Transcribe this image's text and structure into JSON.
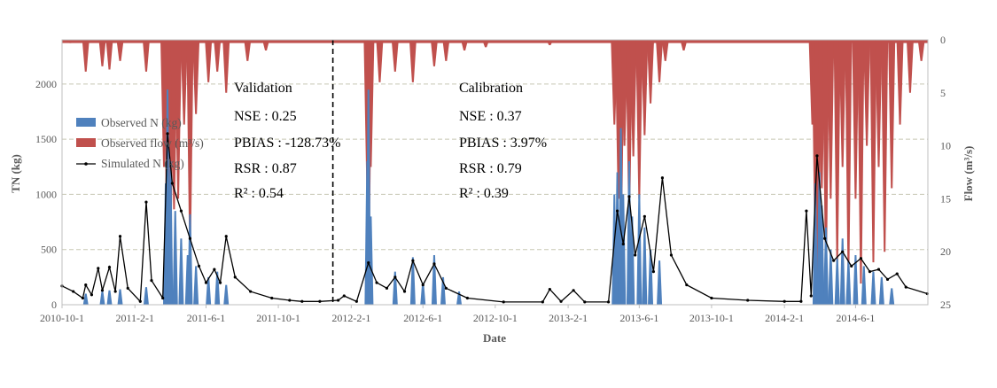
{
  "chart_data": {
    "type": "area",
    "xlabel": "Date",
    "ylabel_left": "TN (kg)",
    "ylabel_right": "Flow (m³/s)",
    "left_ylim": [
      0,
      2400
    ],
    "left_yticks": [
      "0",
      "500",
      "1000",
      "1500",
      "2000"
    ],
    "left_ytick_values": [
      0,
      500,
      1000,
      1500,
      2000
    ],
    "right_ylim": [
      0,
      25
    ],
    "right_inverted": true,
    "right_yticks": [
      "0",
      "5",
      "10",
      "15",
      "20",
      "25"
    ],
    "right_ytick_values": [
      0,
      5,
      10,
      15,
      20,
      25
    ],
    "x_start": "2010-10-01",
    "x_end": "2014-09-30",
    "x_ticks": [
      "2010-10-1",
      "2011-2-1",
      "2011-6-1",
      "2011-10-1",
      "2012-2-1",
      "2012-6-1",
      "2012-10-1",
      "2013-2-1",
      "2013-6-1",
      "2013-10-1",
      "2014-2-1",
      "2014-6-1"
    ],
    "x_tick_dates": [
      "2010-10-01",
      "2011-02-01",
      "2011-06-01",
      "2011-10-01",
      "2012-02-01",
      "2012-06-01",
      "2012-10-01",
      "2013-02-01",
      "2013-06-01",
      "2013-10-01",
      "2014-02-01",
      "2014-06-01"
    ],
    "grid": "horizontal dashed",
    "divider_date": "2012-01-01",
    "legend": {
      "placement": "middle-left",
      "entries": [
        "Observed N (kg)",
        "Observed flow (m³/s)",
        "Simulated N (kg)"
      ]
    },
    "colors": {
      "observed_n": "#4F81BD",
      "observed_flow": "#C0504D",
      "simulated_n": "#000000"
    },
    "annotations": {
      "validation": {
        "title": "Validation",
        "nse": "NSE : 0.25",
        "pbias": "PBIAS : -128.73%",
        "rsr": "RSR : 0.87",
        "r2": "R² : 0.54"
      },
      "calibration": {
        "title": "Calibration",
        "nse": "NSE : 0.37",
        "pbias": "PBIAS : 3.97%",
        "rsr": "RSR : 0.79",
        "r2": "R² : 0.39"
      }
    },
    "series": [
      {
        "name": "Simulated N (kg)",
        "type": "line",
        "axis": "left",
        "points": [
          [
            "2010-10-01",
            170
          ],
          [
            "2010-10-20",
            120
          ],
          [
            "2010-11-05",
            60
          ],
          [
            "2010-11-10",
            180
          ],
          [
            "2010-11-20",
            90
          ],
          [
            "2010-12-01",
            330
          ],
          [
            "2010-12-08",
            130
          ],
          [
            "2010-12-20",
            340
          ],
          [
            "2010-12-30",
            120
          ],
          [
            "2011-01-07",
            620
          ],
          [
            "2011-01-20",
            150
          ],
          [
            "2011-02-10",
            30
          ],
          [
            "2011-02-20",
            930
          ],
          [
            "2011-03-01",
            220
          ],
          [
            "2011-03-20",
            60
          ],
          [
            "2011-03-28",
            1550
          ],
          [
            "2011-04-05",
            1100
          ],
          [
            "2011-04-20",
            850
          ],
          [
            "2011-05-05",
            600
          ],
          [
            "2011-05-20",
            350
          ],
          [
            "2011-06-01",
            200
          ],
          [
            "2011-06-15",
            320
          ],
          [
            "2011-06-25",
            200
          ],
          [
            "2011-07-05",
            620
          ],
          [
            "2011-07-20",
            250
          ],
          [
            "2011-08-15",
            120
          ],
          [
            "2011-09-20",
            60
          ],
          [
            "2011-10-20",
            40
          ],
          [
            "2011-11-10",
            30
          ],
          [
            "2011-12-10",
            30
          ],
          [
            "2012-01-10",
            40
          ],
          [
            "2012-01-20",
            80
          ],
          [
            "2012-02-10",
            30
          ],
          [
            "2012-03-01",
            380
          ],
          [
            "2012-03-15",
            200
          ],
          [
            "2012-04-01",
            150
          ],
          [
            "2012-04-15",
            250
          ],
          [
            "2012-05-01",
            120
          ],
          [
            "2012-05-15",
            400
          ],
          [
            "2012-06-01",
            180
          ],
          [
            "2012-06-20",
            370
          ],
          [
            "2012-07-10",
            150
          ],
          [
            "2012-08-15",
            60
          ],
          [
            "2012-10-15",
            25
          ],
          [
            "2012-12-20",
            25
          ],
          [
            "2013-01-01",
            140
          ],
          [
            "2013-01-20",
            30
          ],
          [
            "2013-02-10",
            130
          ],
          [
            "2013-03-01",
            25
          ],
          [
            "2013-04-10",
            25
          ],
          [
            "2013-04-25",
            850
          ],
          [
            "2013-05-05",
            550
          ],
          [
            "2013-05-15",
            980
          ],
          [
            "2013-05-25",
            450
          ],
          [
            "2013-06-10",
            800
          ],
          [
            "2013-06-25",
            300
          ],
          [
            "2013-07-10",
            1150
          ],
          [
            "2013-07-25",
            450
          ],
          [
            "2013-08-20",
            180
          ],
          [
            "2013-10-01",
            60
          ],
          [
            "2013-12-01",
            40
          ],
          [
            "2014-02-01",
            30
          ],
          [
            "2014-03-01",
            30
          ],
          [
            "2014-03-10",
            850
          ],
          [
            "2014-03-18",
            80
          ],
          [
            "2014-03-28",
            1350
          ],
          [
            "2014-04-10",
            600
          ],
          [
            "2014-04-25",
            400
          ],
          [
            "2014-05-10",
            480
          ],
          [
            "2014-05-25",
            350
          ],
          [
            "2014-06-10",
            420
          ],
          [
            "2014-06-25",
            300
          ],
          [
            "2014-07-10",
            320
          ],
          [
            "2014-07-25",
            230
          ],
          [
            "2014-08-10",
            280
          ],
          [
            "2014-08-25",
            160
          ],
          [
            "2014-09-30",
            100
          ]
        ]
      },
      {
        "name": "Observed N (kg)",
        "type": "bar",
        "axis": "left",
        "points": [
          [
            "2010-11-10",
            100
          ],
          [
            "2010-12-08",
            120
          ],
          [
            "2010-12-20",
            130
          ],
          [
            "2011-01-07",
            140
          ],
          [
            "2011-02-20",
            160
          ],
          [
            "2011-03-25",
            1100
          ],
          [
            "2011-03-28",
            1950
          ],
          [
            "2011-04-02",
            1300
          ],
          [
            "2011-04-10",
            850
          ],
          [
            "2011-04-20",
            600
          ],
          [
            "2011-05-01",
            450
          ],
          [
            "2011-05-05",
            820
          ],
          [
            "2011-05-15",
            350
          ],
          [
            "2011-06-05",
            250
          ],
          [
            "2011-06-20",
            300
          ],
          [
            "2011-07-05",
            180
          ],
          [
            "2012-02-28",
            1300
          ],
          [
            "2012-03-01",
            1950
          ],
          [
            "2012-03-05",
            800
          ],
          [
            "2012-04-15",
            300
          ],
          [
            "2012-05-15",
            430
          ],
          [
            "2012-06-01",
            200
          ],
          [
            "2012-06-20",
            450
          ],
          [
            "2012-07-05",
            250
          ],
          [
            "2012-08-01",
            120
          ],
          [
            "2013-04-20",
            1000
          ],
          [
            "2013-04-25",
            1200
          ],
          [
            "2013-05-01",
            1600
          ],
          [
            "2013-05-05",
            1000
          ],
          [
            "2013-05-15",
            1300
          ],
          [
            "2013-05-20",
            800
          ],
          [
            "2013-06-01",
            1000
          ],
          [
            "2013-06-10",
            700
          ],
          [
            "2013-06-20",
            500
          ],
          [
            "2013-07-05",
            400
          ],
          [
            "2014-03-25",
            1100
          ],
          [
            "2014-04-01",
            1200
          ],
          [
            "2014-04-05",
            900
          ],
          [
            "2014-04-12",
            700
          ],
          [
            "2014-04-20",
            500
          ],
          [
            "2014-05-01",
            420
          ],
          [
            "2014-05-10",
            600
          ],
          [
            "2014-05-20",
            400
          ],
          [
            "2014-06-01",
            450
          ],
          [
            "2014-06-15",
            350
          ],
          [
            "2014-07-01",
            300
          ],
          [
            "2014-07-15",
            250
          ],
          [
            "2014-08-01",
            150
          ]
        ]
      },
      {
        "name": "Observed flow (m³/s)",
        "type": "bar",
        "axis": "right",
        "points": [
          [
            "2010-10-15",
            0.3
          ],
          [
            "2010-11-10",
            3
          ],
          [
            "2010-12-08",
            2.5
          ],
          [
            "2010-12-20",
            2.8
          ],
          [
            "2011-01-07",
            2
          ],
          [
            "2011-02-20",
            3
          ],
          [
            "2011-03-22",
            12
          ],
          [
            "2011-03-28",
            24
          ],
          [
            "2011-04-02",
            20
          ],
          [
            "2011-04-08",
            16
          ],
          [
            "2011-04-15",
            15
          ],
          [
            "2011-04-25",
            8
          ],
          [
            "2011-05-05",
            20
          ],
          [
            "2011-05-15",
            7
          ],
          [
            "2011-06-05",
            4
          ],
          [
            "2011-06-20",
            3
          ],
          [
            "2011-07-05",
            5
          ],
          [
            "2011-08-10",
            2
          ],
          [
            "2011-09-10",
            1
          ],
          [
            "2012-02-28",
            14
          ],
          [
            "2012-03-01",
            24
          ],
          [
            "2012-03-05",
            12
          ],
          [
            "2012-03-20",
            4
          ],
          [
            "2012-04-15",
            3
          ],
          [
            "2012-05-15",
            4
          ],
          [
            "2012-06-20",
            2.5
          ],
          [
            "2012-07-10",
            2
          ],
          [
            "2012-08-10",
            1
          ],
          [
            "2012-09-15",
            0.7
          ],
          [
            "2013-01-01",
            0.5
          ],
          [
            "2013-04-20",
            8
          ],
          [
            "2013-04-27",
            15
          ],
          [
            "2013-05-01",
            20
          ],
          [
            "2013-05-07",
            10
          ],
          [
            "2013-05-15",
            17
          ],
          [
            "2013-05-22",
            11
          ],
          [
            "2013-06-01",
            15
          ],
          [
            "2013-06-10",
            9
          ],
          [
            "2013-06-20",
            6
          ],
          [
            "2013-07-05",
            4
          ],
          [
            "2013-07-15",
            2
          ],
          [
            "2013-08-15",
            1
          ],
          [
            "2014-03-20",
            8
          ],
          [
            "2014-03-25",
            19
          ],
          [
            "2014-03-30",
            24
          ],
          [
            "2014-04-05",
            14
          ],
          [
            "2014-04-12",
            22
          ],
          [
            "2014-04-20",
            15
          ],
          [
            "2014-05-01",
            21
          ],
          [
            "2014-05-10",
            12
          ],
          [
            "2014-05-20",
            22
          ],
          [
            "2014-06-01",
            15
          ],
          [
            "2014-06-10",
            23
          ],
          [
            "2014-06-20",
            10
          ],
          [
            "2014-07-01",
            21
          ],
          [
            "2014-07-10",
            12
          ],
          [
            "2014-07-20",
            20
          ],
          [
            "2014-08-01",
            14
          ],
          [
            "2014-08-15",
            8
          ],
          [
            "2014-09-01",
            5
          ],
          [
            "2014-09-20",
            2
          ]
        ]
      }
    ]
  }
}
